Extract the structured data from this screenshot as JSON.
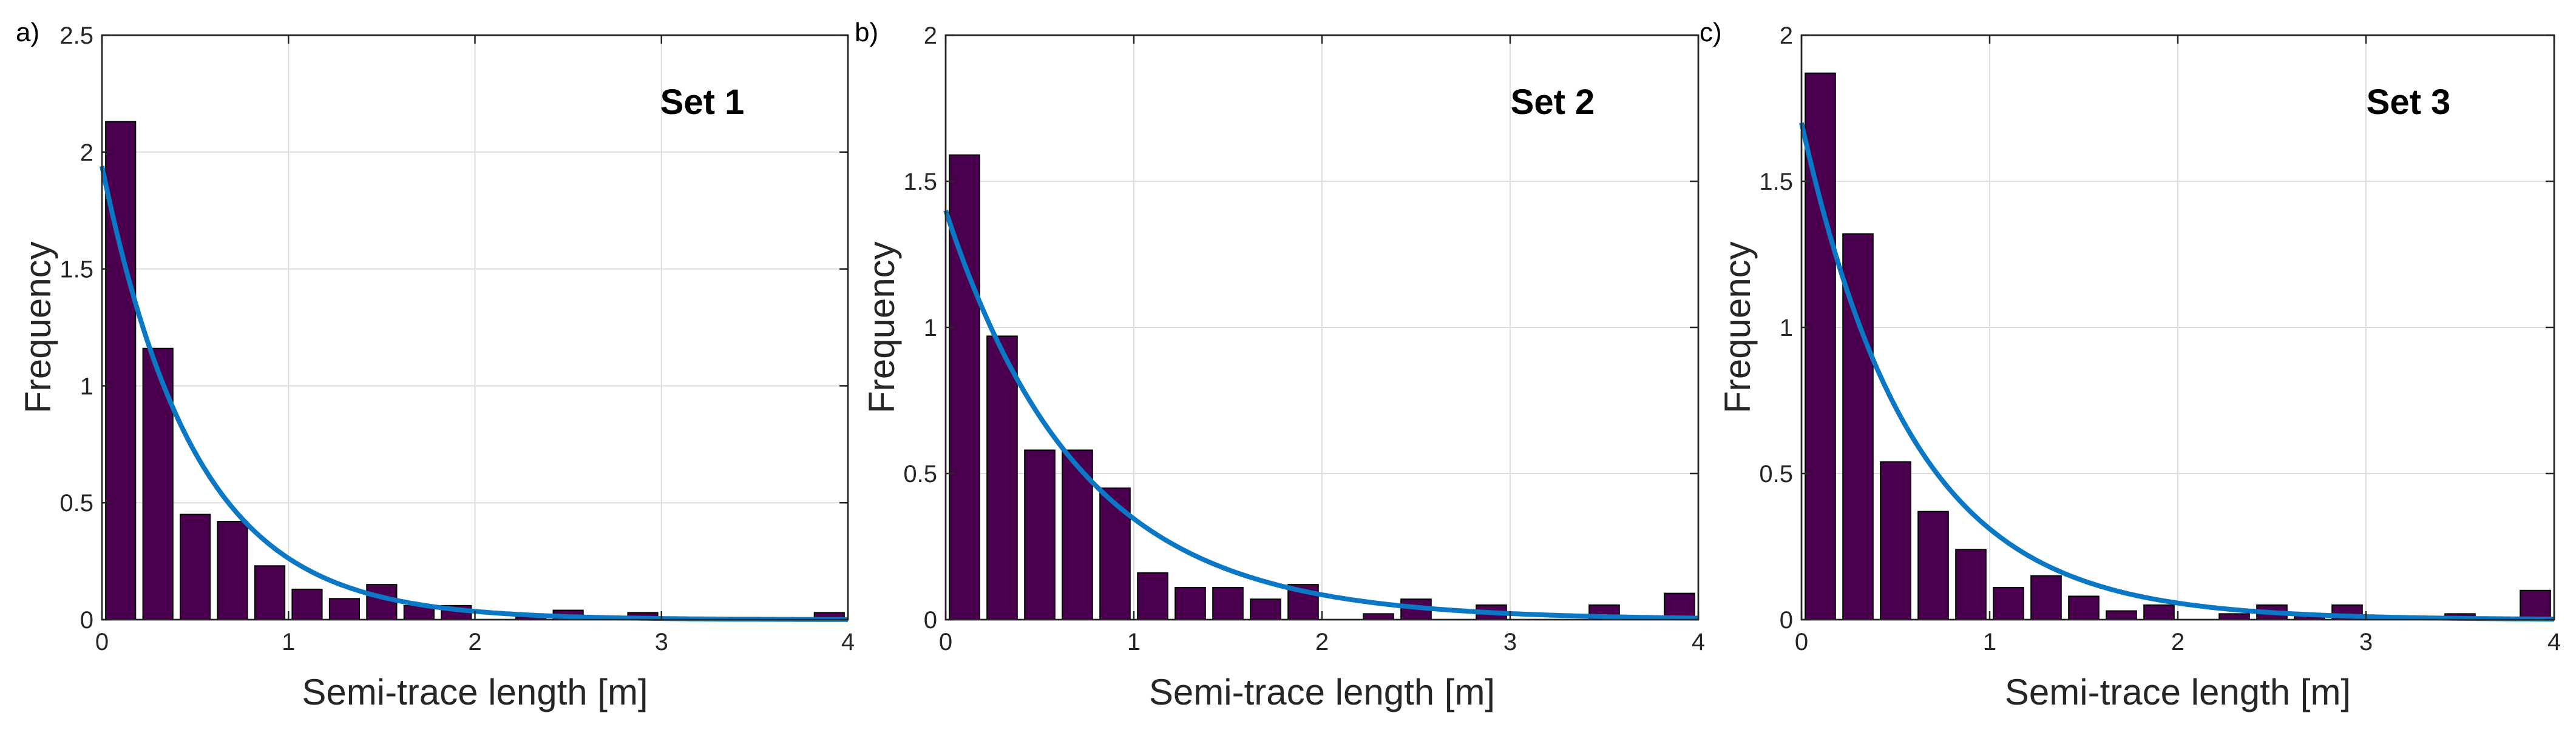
{
  "colors": {
    "bar_fill": "#4a004f",
    "bar_edge": "#000000",
    "curve": "#0a78c4"
  },
  "chart_data": [
    {
      "type": "bar",
      "panel_label": "a)",
      "title": "Set 1",
      "xlabel": "Semi-trace length [m]",
      "ylabel": "Frequency",
      "xlim": [
        0,
        4
      ],
      "ylim": [
        0,
        2.5
      ],
      "xticks": [
        0,
        1,
        2,
        3,
        4
      ],
      "yticks": [
        0,
        0.5,
        1,
        1.5,
        2,
        2.5
      ],
      "ytick_labels": [
        "0",
        "0.5",
        "1",
        "1.5",
        "2",
        "2.5"
      ],
      "grid": true,
      "bin_width": 0.2,
      "x": [
        0.1,
        0.3,
        0.5,
        0.7,
        0.9,
        1.1,
        1.3,
        1.5,
        1.7,
        1.9,
        2.1,
        2.3,
        2.5,
        2.7,
        2.9,
        3.1,
        3.3,
        3.5,
        3.7,
        3.9
      ],
      "values": [
        2.13,
        1.16,
        0.45,
        0.42,
        0.23,
        0.13,
        0.09,
        0.15,
        0.06,
        0.06,
        0.0,
        0.02,
        0.04,
        0.0,
        0.03,
        0.0,
        0.0,
        0.0,
        0.0,
        0.03
      ],
      "fit_curve": {
        "type": "exponential",
        "y0": 1.94,
        "rate": 2.0
      }
    },
    {
      "type": "bar",
      "panel_label": "b)",
      "title": "Set 2",
      "xlabel": "Semi-trace length [m]",
      "ylabel": "Frequency",
      "xlim": [
        0,
        4
      ],
      "ylim": [
        0,
        2
      ],
      "xticks": [
        0,
        1,
        2,
        3,
        4
      ],
      "yticks": [
        0,
        0.5,
        1,
        1.5,
        2
      ],
      "ytick_labels": [
        "0",
        "0.5",
        "1",
        "1.5",
        "2"
      ],
      "grid": true,
      "bin_width": 0.2,
      "x": [
        0.1,
        0.3,
        0.5,
        0.7,
        0.9,
        1.1,
        1.3,
        1.5,
        1.7,
        1.9,
        2.1,
        2.3,
        2.5,
        2.7,
        2.9,
        3.1,
        3.3,
        3.5,
        3.7,
        3.9
      ],
      "values": [
        1.59,
        0.97,
        0.58,
        0.58,
        0.45,
        0.16,
        0.11,
        0.11,
        0.07,
        0.12,
        0.0,
        0.02,
        0.07,
        0.0,
        0.05,
        0.0,
        0.0,
        0.05,
        0.0,
        0.09
      ],
      "fit_curve": {
        "type": "exponential",
        "y0": 1.4,
        "rate": 1.4
      }
    },
    {
      "type": "bar",
      "panel_label": "c)",
      "title": "Set 3",
      "xlabel": "Semi-trace length [m]",
      "ylabel": "Frequency",
      "xlim": [
        0,
        4
      ],
      "ylim": [
        0,
        2
      ],
      "xticks": [
        0,
        1,
        2,
        3,
        4
      ],
      "yticks": [
        0,
        0.5,
        1,
        1.5,
        2
      ],
      "ytick_labels": [
        "0",
        "0.5",
        "1",
        "1.5",
        "2"
      ],
      "grid": true,
      "bin_width": 0.2,
      "x": [
        0.1,
        0.3,
        0.5,
        0.7,
        0.9,
        1.1,
        1.3,
        1.5,
        1.7,
        1.9,
        2.1,
        2.3,
        2.5,
        2.7,
        2.9,
        3.1,
        3.3,
        3.5,
        3.7,
        3.9
      ],
      "values": [
        1.87,
        1.32,
        0.54,
        0.37,
        0.24,
        0.11,
        0.15,
        0.08,
        0.03,
        0.05,
        0.0,
        0.02,
        0.05,
        0.02,
        0.05,
        0.0,
        0.0,
        0.02,
        0.0,
        0.1
      ],
      "fit_curve": {
        "type": "exponential",
        "y0": 1.7,
        "rate": 1.7
      }
    }
  ]
}
